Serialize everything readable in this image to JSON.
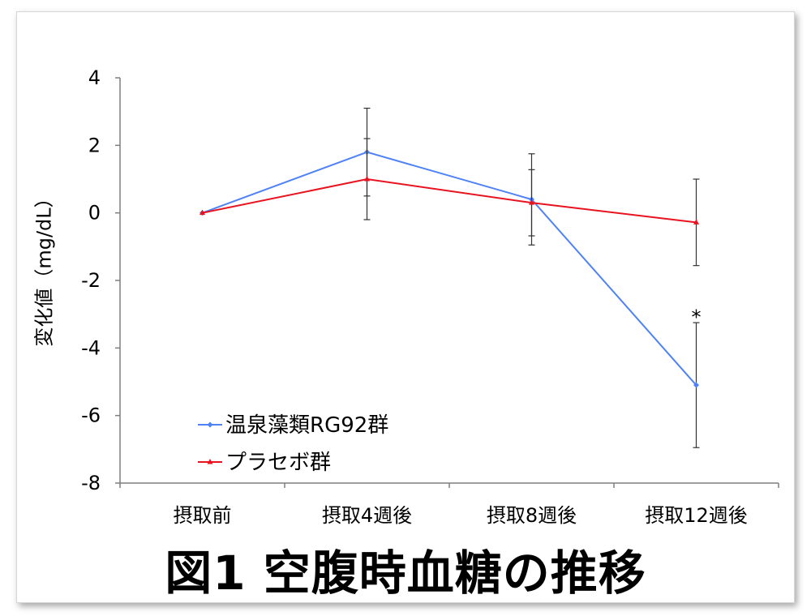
{
  "chart_data": {
    "type": "line",
    "title": "図1 空腹時血糖の推移",
    "ylabel": "変化値（mg/dL）",
    "xlabel": "",
    "categories": [
      "摂取前",
      "摂取4週後",
      "摂取8週後",
      "摂取12週後"
    ],
    "ylim": [
      -8,
      4
    ],
    "yticks": [
      4,
      2,
      0,
      -2,
      -4,
      -6,
      -8
    ],
    "grid": false,
    "legend_position": "bottom-left",
    "series": [
      {
        "name": "温泉藻類RG92群",
        "color": "#4f81f7",
        "marker": "diamond",
        "values": [
          0,
          1.8,
          0.4,
          -5.1
        ],
        "error": [
          0,
          1.3,
          1.35,
          1.85
        ]
      },
      {
        "name": "プラセボ群",
        "color": "#e8131f",
        "marker": "triangle",
        "values": [
          0,
          1.0,
          0.3,
          -0.28
        ],
        "error": [
          0,
          1.2,
          0.98,
          1.28
        ]
      }
    ],
    "annotations": [
      {
        "text": "*",
        "category": "摂取12週後",
        "y": -3.0
      }
    ]
  }
}
